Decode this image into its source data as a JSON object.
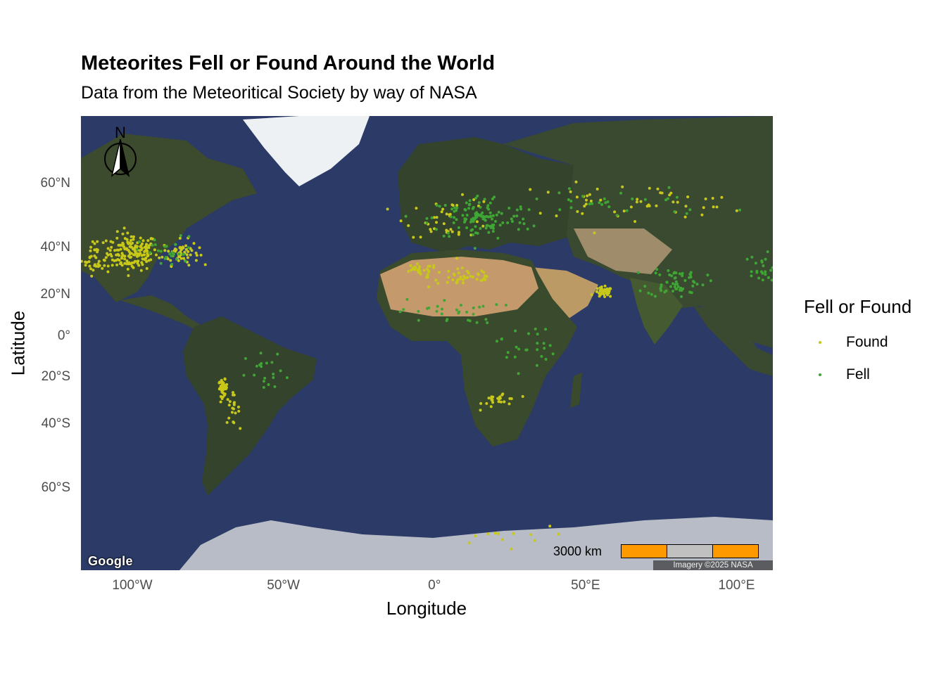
{
  "title": "Meteorites Fell or Found Around the World",
  "subtitle": "Data from the Meteoritical Society by way of NASA",
  "axes": {
    "xlabel": "Longitude",
    "ylabel": "Latitude",
    "x_ticks": [
      {
        "label": "100°W",
        "value": -100
      },
      {
        "label": "50°W",
        "value": -50
      },
      {
        "label": "0°",
        "value": 0
      },
      {
        "label": "50°E",
        "value": 50
      },
      {
        "label": "100°E",
        "value": 100
      }
    ],
    "y_ticks": [
      {
        "label": "60°N",
        "value": 60
      },
      {
        "label": "40°N",
        "value": 40
      },
      {
        "label": "20°N",
        "value": 20
      },
      {
        "label": "0°",
        "value": 0
      },
      {
        "label": "20°S",
        "value": -20
      },
      {
        "label": "40°S",
        "value": -40
      },
      {
        "label": "60°S",
        "value": -60
      }
    ],
    "xlim": [
      -117,
      112
    ],
    "ylim": [
      -75,
      73
    ]
  },
  "legend": {
    "title": "Fell or Found",
    "items": [
      {
        "label": "Found",
        "color": "#c8c81a"
      },
      {
        "label": "Fell",
        "color": "#3fa535"
      }
    ]
  },
  "map_overlays": {
    "north_arrow_label": "N",
    "scale_bar_label": "3000 km",
    "scale_bar_colors": [
      "#ff9900",
      "#c0c0c0",
      "#ff9900"
    ],
    "basemap_logo": "Google",
    "attribution": "Imagery ©2025 NASA"
  },
  "chart_data": {
    "type": "scatter",
    "title": "Meteorites Fell or Found Around the World",
    "subtitle": "Data from the Meteoritical Society by way of NASA",
    "xlabel": "Longitude",
    "ylabel": "Latitude",
    "xlim": [
      -117,
      112
    ],
    "ylim": [
      -75,
      73
    ],
    "series": [
      {
        "name": "Found",
        "color": "#c8c81a",
        "clusters": [
          {
            "lon": -100,
            "lat": 38,
            "spread_lon": 7,
            "spread_lat": 6,
            "count": 160
          },
          {
            "lon": -84,
            "lat": 38,
            "spread_lon": 5,
            "spread_lat": 4,
            "count": 60
          },
          {
            "lon": -112,
            "lat": 36,
            "spread_lon": 4,
            "spread_lat": 6,
            "count": 40
          },
          {
            "lon": -70,
            "lat": -25,
            "spread_lon": 1.2,
            "spread_lat": 3,
            "count": 45
          },
          {
            "lon": -67,
            "lat": -34,
            "spread_lon": 2,
            "spread_lat": 5,
            "count": 20
          },
          {
            "lon": 10,
            "lat": 28,
            "spread_lon": 10,
            "spread_lat": 4,
            "count": 45
          },
          {
            "lon": -5,
            "lat": 31,
            "spread_lon": 5,
            "spread_lat": 2,
            "count": 25
          },
          {
            "lon": 56,
            "lat": 21,
            "spread_lon": 2.5,
            "spread_lat": 2,
            "count": 45
          },
          {
            "lon": 22,
            "lat": -30,
            "spread_lon": 5,
            "spread_lat": 3,
            "count": 25
          },
          {
            "lon": 5,
            "lat": 50,
            "spread_lon": 12,
            "spread_lat": 5,
            "count": 40
          },
          {
            "lon": 65,
            "lat": 55,
            "spread_lon": 35,
            "spread_lat": 4,
            "count": 55
          },
          {
            "lon": 20,
            "lat": -70,
            "spread_lon": 15,
            "spread_lat": 1.5,
            "count": 12
          }
        ]
      },
      {
        "name": "Fell",
        "color": "#3fa535",
        "clusters": [
          {
            "lon": 15,
            "lat": 50,
            "spread_lon": 14,
            "spread_lat": 6,
            "count": 120
          },
          {
            "lon": 80,
            "lat": 26,
            "spread_lon": 8,
            "spread_lat": 6,
            "count": 60
          },
          {
            "lon": 108,
            "lat": 30,
            "spread_lon": 6,
            "spread_lat": 6,
            "count": 30
          },
          {
            "lon": 5,
            "lat": 12,
            "spread_lon": 14,
            "spread_lat": 5,
            "count": 30
          },
          {
            "lon": 30,
            "lat": -5,
            "spread_lon": 8,
            "spread_lat": 10,
            "count": 25
          },
          {
            "lon": -88,
            "lat": 38,
            "spread_lon": 8,
            "spread_lat": 5,
            "count": 30
          },
          {
            "lon": -55,
            "lat": -20,
            "spread_lon": 6,
            "spread_lat": 10,
            "count": 20
          },
          {
            "lon": 60,
            "lat": 55,
            "spread_lon": 30,
            "spread_lat": 4,
            "count": 30
          }
        ]
      }
    ]
  }
}
